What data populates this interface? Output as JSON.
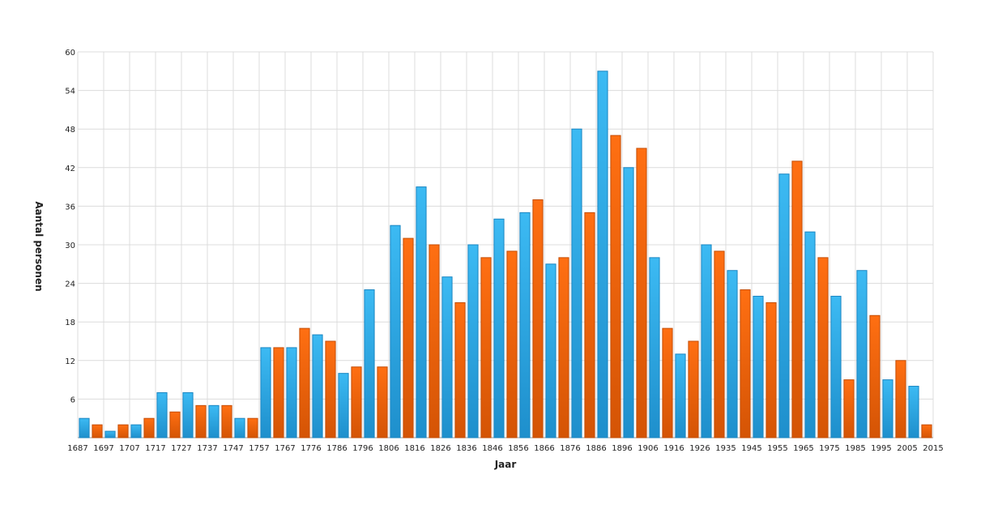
{
  "chart_data": {
    "type": "bar",
    "xlabel": "Jaar",
    "ylabel": "Aantal personen",
    "ylim": [
      0,
      60
    ],
    "yticks": [
      6,
      12,
      18,
      24,
      30,
      36,
      42,
      48,
      54,
      60
    ],
    "grid": true,
    "colors": {
      "blue": "#29a9e6",
      "blue_dark": "#1a86c2",
      "orange": "#f2650f",
      "orange_dark": "#c44d06"
    },
    "tick_labels": [
      "1687",
      "1697",
      "1707",
      "1717",
      "1727",
      "1737",
      "1747",
      "1757",
      "1767",
      "1776",
      "1786",
      "1796",
      "1806",
      "1816",
      "1826",
      "1836",
      "1846",
      "1856",
      "1866",
      "1876",
      "1886",
      "1896",
      "1906",
      "1916",
      "1926",
      "1935",
      "1945",
      "1955",
      "1965",
      "1975",
      "1985",
      "1995",
      "2005",
      "2015"
    ],
    "values": [
      3,
      2,
      1,
      2,
      2,
      3,
      7,
      4,
      7,
      5,
      5,
      5,
      3,
      3,
      14,
      14,
      14,
      17,
      16,
      15,
      10,
      11,
      23,
      11,
      33,
      31,
      39,
      30,
      25,
      21,
      30,
      28,
      34,
      29,
      35,
      37,
      27,
      28,
      48,
      35,
      57,
      47,
      42,
      45,
      28,
      17,
      13,
      15,
      30,
      29,
      26,
      23,
      22,
      21,
      41,
      43,
      32,
      28,
      22,
      9,
      26,
      19,
      9,
      12,
      8,
      2
    ],
    "series_colors": [
      "blue",
      "orange"
    ]
  }
}
